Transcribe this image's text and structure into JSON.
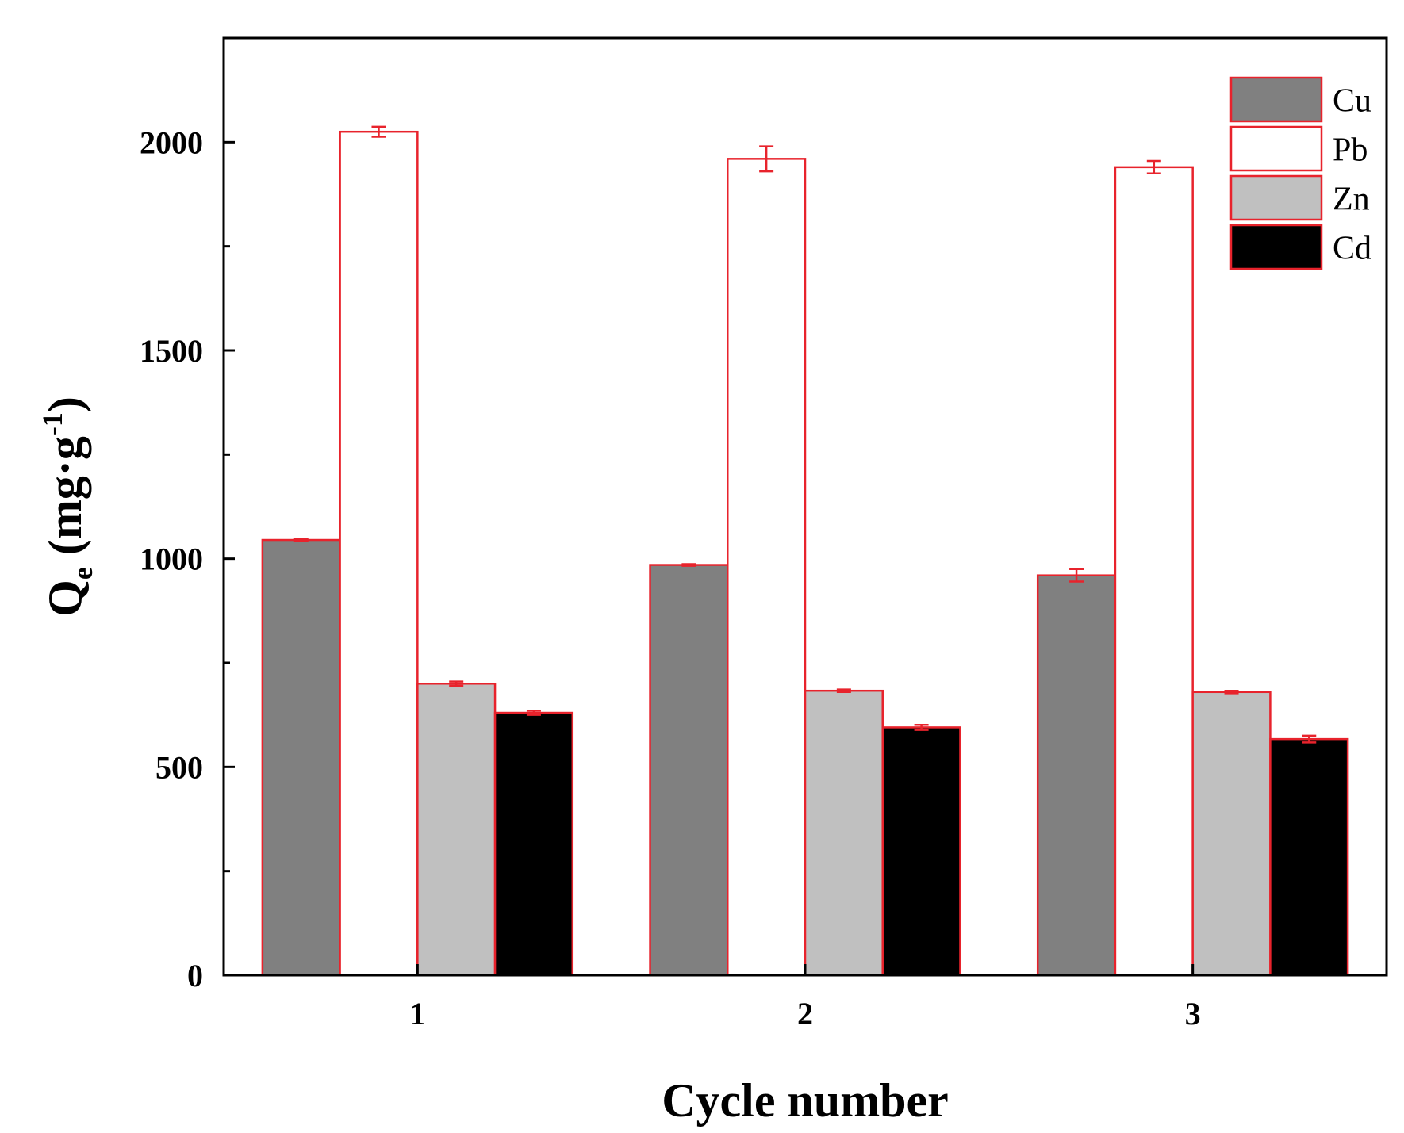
{
  "chart_data": {
    "type": "bar",
    "xlabel": "Cycle number",
    "ylabel": {
      "main": "Q",
      "sub": "e",
      "unit_open": " (mg·g",
      "sup": "-1",
      "unit_close": ")"
    },
    "categories": [
      "1",
      "2",
      "3"
    ],
    "ylim": [
      0,
      2250
    ],
    "yticks": [
      0,
      500,
      1000,
      1500,
      2000
    ],
    "yminor": [
      250,
      750,
      1250,
      1750
    ],
    "legend_position": "top-right",
    "edge_color": "#e8232c",
    "series": [
      {
        "name": "Cu",
        "color": "#808080",
        "values": [
          1045,
          985,
          960
        ],
        "errors": [
          3,
          2,
          15
        ]
      },
      {
        "name": "Pb",
        "color": "#ffffff",
        "values": [
          2025,
          1960,
          1940
        ],
        "errors": [
          12,
          30,
          15
        ]
      },
      {
        "name": "Zn",
        "color": "#c0c0c0",
        "values": [
          700,
          683,
          680
        ],
        "errors": [
          5,
          3,
          3
        ]
      },
      {
        "name": "Cd",
        "color": "#000000",
        "values": [
          630,
          595,
          567
        ],
        "errors": [
          5,
          6,
          8
        ]
      }
    ]
  }
}
